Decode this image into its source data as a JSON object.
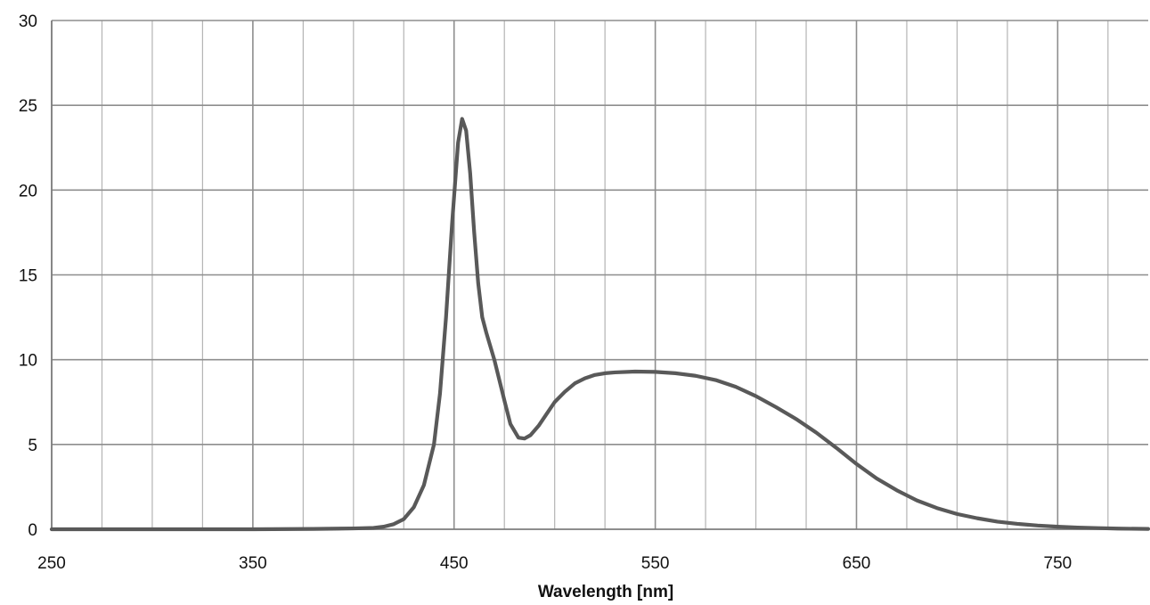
{
  "chart_data": {
    "type": "line",
    "title": "",
    "xlabel": "Wavelength [nm]",
    "ylabel": "",
    "xlim": [
      250,
      795
    ],
    "ylim": [
      0,
      30
    ],
    "x_ticks": [
      250,
      350,
      450,
      550,
      650,
      750
    ],
    "x_tick_labels": [
      "250",
      "350",
      "450",
      "550",
      "650",
      "750"
    ],
    "x_minor_grid_step": 25,
    "y_ticks": [
      0,
      5,
      10,
      15,
      20,
      25,
      30
    ],
    "y_tick_labels": [
      "0",
      "5",
      "10",
      "15",
      "20",
      "25",
      "30"
    ],
    "grid": true,
    "legend": "none",
    "series": [
      {
        "color": "#595959",
        "x": [
          250,
          300,
          350,
          380,
          400,
          410,
          415,
          420,
          425,
          430,
          435,
          440,
          443,
          446,
          449,
          452,
          454,
          456,
          458,
          460,
          462,
          464,
          466,
          470,
          475,
          478,
          482,
          485,
          488,
          492,
          496,
          500,
          505,
          510,
          515,
          520,
          525,
          530,
          540,
          550,
          560,
          570,
          580,
          590,
          600,
          610,
          620,
          630,
          640,
          650,
          660,
          670,
          680,
          690,
          700,
          710,
          720,
          730,
          740,
          750,
          760,
          770,
          780,
          795
        ],
        "y": [
          0,
          0,
          0,
          0.02,
          0.05,
          0.08,
          0.15,
          0.3,
          0.6,
          1.3,
          2.6,
          5.0,
          8.0,
          12.5,
          18.0,
          22.8,
          24.2,
          23.5,
          21.0,
          17.5,
          14.5,
          12.5,
          11.6,
          10.0,
          7.6,
          6.2,
          5.4,
          5.35,
          5.55,
          6.1,
          6.8,
          7.5,
          8.1,
          8.6,
          8.9,
          9.1,
          9.2,
          9.25,
          9.3,
          9.28,
          9.2,
          9.05,
          8.8,
          8.4,
          7.85,
          7.2,
          6.5,
          5.7,
          4.8,
          3.85,
          3.0,
          2.3,
          1.7,
          1.25,
          0.9,
          0.65,
          0.45,
          0.32,
          0.22,
          0.15,
          0.1,
          0.07,
          0.04,
          0.02
        ]
      }
    ]
  }
}
